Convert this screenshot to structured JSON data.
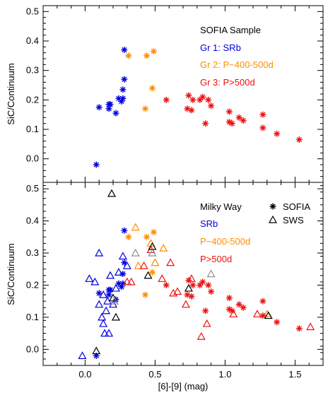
{
  "chart_data": [
    {
      "type": "scatter",
      "title": "",
      "xlabel": "",
      "ylabel": "SiC/Continuum",
      "xlim": [
        -0.3,
        1.7
      ],
      "ylim": [
        -0.08,
        0.52
      ],
      "xticks": [],
      "yticks": [
        "0.0",
        "0.1",
        "0.2",
        "0.3",
        "0.4",
        "0.5"
      ],
      "legend_title": "SOFIA Sample",
      "legend_placement": "top-right",
      "series": [
        {
          "name": "Gr 1: SRb",
          "color": "#0000dd",
          "marker": "asterisk",
          "points": [
            [
              0.08,
              -0.02
            ],
            [
              0.1,
              0.175
            ],
            [
              0.17,
              0.185
            ],
            [
              0.17,
              0.17
            ],
            [
              0.18,
              0.185
            ],
            [
              0.22,
              0.155
            ],
            [
              0.24,
              0.205
            ],
            [
              0.26,
              0.195
            ],
            [
              0.27,
              0.235
            ],
            [
              0.27,
              0.205
            ],
            [
              0.28,
              0.27
            ],
            [
              0.28,
              0.37
            ]
          ]
        },
        {
          "name": "Gr 2: P~400-500d",
          "color": "#ff8c00",
          "marker": "asterisk",
          "points": [
            [
              0.31,
              0.35
            ],
            [
              0.43,
              0.17
            ],
            [
              0.44,
              0.35
            ],
            [
              0.48,
              0.24
            ],
            [
              0.49,
              0.365
            ]
          ]
        },
        {
          "name": "Gr 3: P>500d",
          "color": "#ee1111",
          "marker": "asterisk",
          "points": [
            [
              0.58,
              0.2
            ],
            [
              0.73,
              0.17
            ],
            [
              0.74,
              0.215
            ],
            [
              0.76,
              0.165
            ],
            [
              0.77,
              0.2
            ],
            [
              0.82,
              0.2
            ],
            [
              0.84,
              0.21
            ],
            [
              0.86,
              0.12
            ],
            [
              0.88,
              0.2
            ],
            [
              0.9,
              0.18
            ],
            [
              1.03,
              0.16
            ],
            [
              1.03,
              0.125
            ],
            [
              1.05,
              0.12
            ],
            [
              1.1,
              0.14
            ],
            [
              1.13,
              0.13
            ],
            [
              1.27,
              0.15
            ],
            [
              1.27,
              0.105
            ],
            [
              1.37,
              0.085
            ],
            [
              1.53,
              0.065
            ]
          ]
        }
      ]
    },
    {
      "type": "scatter",
      "title": "",
      "xlabel": "[6]-[9] (mag)",
      "ylabel": "SiC/Continuum",
      "xlim": [
        -0.3,
        1.7
      ],
      "ylim": [
        -0.05,
        0.52
      ],
      "xticks": [
        "0.0",
        "0.5",
        "1.0",
        "1.5"
      ],
      "yticks": [
        "0.0",
        "0.1",
        "0.2",
        "0.3",
        "0.4",
        "0.5"
      ],
      "legend_title": "Milky Way",
      "legend_placement": "top-right",
      "marker_legend": [
        {
          "label": "SOFIA",
          "marker": "asterisk"
        },
        {
          "label": "SWS",
          "marker": "triangle"
        }
      ],
      "series": [
        {
          "name": "SRb",
          "color": "#0000dd",
          "points_sofia": [
            [
              0.08,
              -0.02
            ],
            [
              0.1,
              0.175
            ],
            [
              0.17,
              0.185
            ],
            [
              0.17,
              0.17
            ],
            [
              0.18,
              0.185
            ],
            [
              0.22,
              0.155
            ],
            [
              0.24,
              0.205
            ],
            [
              0.26,
              0.195
            ],
            [
              0.27,
              0.235
            ],
            [
              0.27,
              0.205
            ],
            [
              0.28,
              0.27
            ],
            [
              0.28,
              0.37
            ]
          ],
          "points_sws": [
            [
              -0.02,
              -0.02
            ],
            [
              0.03,
              0.22
            ],
            [
              0.07,
              0.21
            ],
            [
              0.1,
              0.3
            ],
            [
              0.1,
              0.14
            ],
            [
              0.12,
              0.1
            ],
            [
              0.13,
              0.17
            ],
            [
              0.13,
              0.08
            ],
            [
              0.14,
              0.05
            ],
            [
              0.15,
              0.12
            ],
            [
              0.16,
              0.15
            ],
            [
              0.17,
              0.05
            ],
            [
              0.18,
              0.23
            ],
            [
              0.2,
              0.14
            ],
            [
              0.22,
              0.19
            ],
            [
              0.24,
              0.24
            ],
            [
              0.27,
              0.29
            ],
            [
              0.3,
              0.26
            ]
          ]
        },
        {
          "name": "P~400-500d",
          "color": "#ff8c00",
          "points_sofia": [
            [
              0.31,
              0.35
            ],
            [
              0.43,
              0.17
            ],
            [
              0.44,
              0.35
            ],
            [
              0.48,
              0.24
            ],
            [
              0.49,
              0.365
            ]
          ],
          "points_sws": [
            [
              0.36,
              0.38
            ],
            [
              0.38,
              0.26
            ],
            [
              0.47,
              0.33
            ],
            [
              0.5,
              0.27
            ],
            [
              0.56,
              0.315
            ],
            [
              1.3,
              0.11
            ]
          ]
        },
        {
          "name": "P>500d",
          "color": "#ee1111",
          "points_sofia": [
            [
              0.58,
              0.2
            ],
            [
              0.73,
              0.17
            ],
            [
              0.74,
              0.215
            ],
            [
              0.76,
              0.165
            ],
            [
              0.77,
              0.2
            ],
            [
              0.82,
              0.2
            ],
            [
              0.84,
              0.21
            ],
            [
              0.86,
              0.12
            ],
            [
              0.88,
              0.2
            ],
            [
              0.9,
              0.18
            ],
            [
              1.03,
              0.16
            ],
            [
              1.03,
              0.125
            ],
            [
              1.05,
              0.12
            ],
            [
              1.1,
              0.14
            ],
            [
              1.13,
              0.13
            ],
            [
              1.27,
              0.15
            ],
            [
              1.27,
              0.105
            ],
            [
              1.37,
              0.085
            ],
            [
              1.53,
              0.065
            ]
          ],
          "points_sws": [
            [
              0.3,
              0.21
            ],
            [
              0.33,
              0.21
            ],
            [
              0.42,
              0.26
            ],
            [
              0.47,
              0.31
            ],
            [
              0.55,
              0.22
            ],
            [
              0.61,
              0.27
            ],
            [
              0.63,
              0.175
            ],
            [
              0.66,
              0.18
            ],
            [
              0.72,
              0.14
            ],
            [
              0.76,
              0.22
            ],
            [
              0.83,
              0.04
            ],
            [
              0.87,
              0.08
            ],
            [
              1.06,
              0.11
            ],
            [
              1.23,
              0.11
            ],
            [
              1.61,
              0.07
            ]
          ]
        },
        {
          "name": "",
          "color": "#000000",
          "points_sws": [
            [
              0.08,
              -0.005
            ],
            [
              0.19,
              0.485
            ],
            [
              0.2,
              0.16
            ],
            [
              0.22,
              0.1
            ],
            [
              0.45,
              0.23
            ],
            [
              0.48,
              0.32
            ],
            [
              0.74,
              0.19
            ],
            [
              1.31,
              0.105
            ]
          ]
        },
        {
          "name": "",
          "color": "#909090",
          "points_sws": [
            [
              0.21,
              0.15
            ],
            [
              0.36,
              0.3
            ],
            [
              0.48,
              0.3
            ],
            [
              0.9,
              0.235
            ]
          ]
        }
      ]
    }
  ]
}
